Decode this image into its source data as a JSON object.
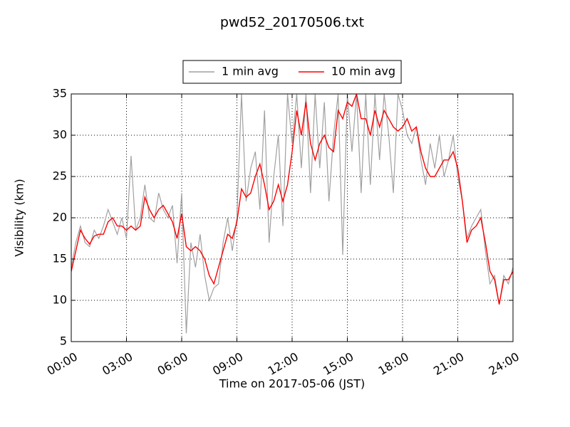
{
  "chart_data": {
    "type": "line",
    "title": "pwd52_20170506.txt",
    "x_label": "Time on 2017-05-06 (JST)",
    "y_label": "Visibility (km)",
    "x": [
      0,
      0.25,
      0.5,
      0.75,
      1,
      1.25,
      1.5,
      1.75,
      2,
      2.25,
      2.5,
      2.75,
      3,
      3.25,
      3.5,
      3.75,
      4,
      4.25,
      4.5,
      4.75,
      5,
      5.25,
      5.5,
      5.75,
      6,
      6.25,
      6.5,
      6.75,
      7,
      7.25,
      7.5,
      7.75,
      8,
      8.25,
      8.5,
      8.75,
      9,
      9.25,
      9.5,
      9.75,
      10,
      10.25,
      10.5,
      10.75,
      11,
      11.25,
      11.5,
      11.75,
      12,
      12.25,
      12.5,
      12.75,
      13,
      13.25,
      13.5,
      13.75,
      14,
      14.25,
      14.5,
      14.75,
      15,
      15.25,
      15.5,
      15.75,
      16,
      16.25,
      16.5,
      16.75,
      17,
      17.25,
      17.5,
      17.75,
      18,
      18.25,
      18.5,
      18.75,
      19,
      19.25,
      19.5,
      19.75,
      20,
      20.25,
      20.5,
      20.75,
      21,
      21.25,
      21.5,
      21.75,
      22,
      22.25,
      22.5,
      22.75,
      23,
      23.25,
      23.5,
      23.75,
      24
    ],
    "series": [
      {
        "name": "1 min avg",
        "color": "#a0a0a0",
        "values": [
          14,
          17,
          19,
          17,
          16.5,
          18.5,
          17.5,
          19,
          21,
          19.5,
          18,
          20,
          17.5,
          27.5,
          18.5,
          20,
          24,
          20,
          19.5,
          23,
          21,
          20,
          21.5,
          14.5,
          23,
          6,
          17,
          14,
          18,
          13,
          10,
          11.5,
          12,
          17,
          20,
          16,
          20,
          35,
          22,
          26,
          28,
          21,
          33,
          17,
          25,
          30,
          19,
          35,
          29,
          35,
          26,
          35,
          23,
          35,
          26,
          34,
          22,
          30,
          35,
          15.5,
          35,
          28,
          35,
          23,
          35,
          24,
          35,
          27,
          35,
          30,
          23,
          35,
          33,
          30,
          29,
          31,
          27,
          24,
          29,
          26,
          30,
          25,
          27,
          30,
          25,
          22,
          17.5,
          19,
          20,
          21,
          16,
          12,
          13,
          9.5,
          13,
          12,
          14
        ]
      },
      {
        "name": "10 min avg",
        "color": "#ff0000",
        "values": [
          13.5,
          16,
          18.5,
          17.5,
          16.8,
          17.8,
          18,
          18,
          19.5,
          20,
          19,
          19,
          18.5,
          19,
          18.5,
          19,
          22.5,
          21,
          20,
          21,
          21.5,
          20.5,
          19.5,
          17.5,
          20.5,
          16.5,
          16,
          16.5,
          16,
          15,
          13,
          12,
          14,
          16,
          18,
          17.5,
          19.5,
          23.5,
          22.5,
          23,
          25,
          26.5,
          24,
          21,
          22,
          24,
          22,
          24,
          28,
          33,
          30,
          34,
          29,
          27,
          29,
          30,
          28.5,
          28,
          33,
          32,
          34,
          33.5,
          35,
          32,
          32,
          30,
          33,
          31,
          33,
          32,
          31,
          30.5,
          31,
          32,
          30.5,
          31,
          28,
          26,
          25,
          25,
          26,
          27,
          27,
          28,
          26,
          22,
          17,
          18.5,
          19,
          20,
          17,
          13.5,
          12.5,
          9.5,
          12.5,
          12.5,
          13.5
        ]
      }
    ],
    "xlim": [
      0,
      24
    ],
    "xticks": [
      {
        "value": 0,
        "label": "00:00"
      },
      {
        "value": 3,
        "label": "03:00"
      },
      {
        "value": 6,
        "label": "06:00"
      },
      {
        "value": 9,
        "label": "09:00"
      },
      {
        "value": 12,
        "label": "12:00"
      },
      {
        "value": 15,
        "label": "15:00"
      },
      {
        "value": 18,
        "label": "18:00"
      },
      {
        "value": 21,
        "label": "21:00"
      },
      {
        "value": 24,
        "label": "24:00"
      }
    ],
    "ylim": [
      5,
      35
    ],
    "yticks": [
      5,
      10,
      15,
      20,
      25,
      30,
      35
    ],
    "grid": true,
    "legend": "top"
  }
}
